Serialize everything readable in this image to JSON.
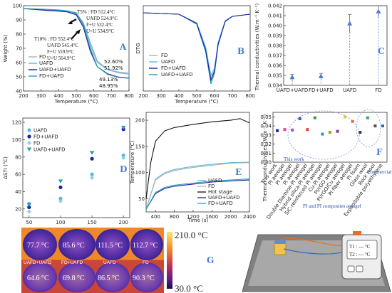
{
  "colors": {
    "fd": "#b0b0b0",
    "uafd": "#58b8e6",
    "ufd": "#1f1fa8",
    "fdua": "#28a0b0",
    "hot": "#111111",
    "axis": "#333333",
    "blue": "#4a7fd0"
  },
  "panel_labels": {
    "a": "A",
    "b": "B",
    "c": "C",
    "d": "D",
    "e": "E",
    "f": "F",
    "g": "G"
  },
  "panelA": {
    "ylabel": "Weight (%)",
    "xlabel": "Temperature (°C)",
    "xticks": [
      "200",
      "300",
      "400",
      "500",
      "600",
      "700",
      "800"
    ],
    "yticks": [
      "40",
      "50",
      "60",
      "70",
      "80",
      "90",
      "100"
    ],
    "t5": [
      "T5% : FD 512.4°C",
      "UAFD 524.9°C",
      "F+U 532.4°C",
      "U+U 534.9°C"
    ],
    "t10": [
      "T10% : FD 552.4°C",
      "UAFD 545.4°C",
      "F+U 559.9°C",
      "U+U 564.9°C"
    ],
    "pcts": [
      "52.60%",
      "51.92%",
      "49.13%",
      "48.95%"
    ],
    "legend": [
      "FD",
      "UAFD",
      "UAFD+UAFD",
      "FD+UAFD"
    ]
  },
  "panelB": {
    "ylabel": "DTG",
    "xlabel": "Temperature (°C)",
    "xticks": [
      "200",
      "300",
      "400",
      "500",
      "600",
      "700",
      "800"
    ],
    "legend": [
      "FD",
      "UAFD",
      "FD+UAFD",
      "UAFD+UAFD"
    ]
  },
  "panelC": {
    "ylabel": "Thermal conductivities (W.m⁻¹ K⁻¹)",
    "yticks": [
      "0.034",
      "0.035",
      "0.036",
      "0.037",
      "0.038",
      "0.039",
      "0.040",
      "0.041",
      "0.042"
    ],
    "categories": [
      "UAFD+UAFD",
      "FD+UAFD",
      "UAFD",
      "FD"
    ]
  },
  "panelD": {
    "ylabel": "ΔSTI (°C)",
    "xlabel": "",
    "xticks": [
      "50",
      "100",
      "150",
      "200"
    ],
    "yticks": [
      "20",
      "40",
      "60",
      "80",
      "100",
      "120"
    ],
    "legend": [
      "UAFD",
      "FD+UAFD",
      "FD",
      "UAFD+UAFD"
    ]
  },
  "panelE": {
    "ylabel": "Temperature (°C)",
    "xlabel": "Time (s)",
    "xticks": [
      "400",
      "800",
      "1200",
      "1600",
      "2000",
      "2400"
    ],
    "yticks": [
      "50",
      "100",
      "150",
      "200"
    ],
    "legend": [
      "UAFD",
      "FD",
      "Hot stage",
      "UAFD+UAFD",
      "FD+UAFD"
    ]
  },
  "panelF": {
    "ylabel": "Thermal conductivities (W.m⁻¹ K⁻¹)",
    "yticks": [
      "0.00",
      "0.01",
      "0.02",
      "0.03",
      "0.04",
      "0.05"
    ],
    "categories": [
      "This work",
      "PI aerogel",
      "PI aerogel",
      "PI aerogel",
      "Double Diamine-PI aerogel",
      "Hybrid silica-PI aerogel",
      "SiC-reinforced PI aerogel",
      "Cu-PI aerogel",
      "PI/rGO aerogel",
      "PI/rGO/Cu aerogel",
      "PI fiber aerogel",
      "PI foam",
      "Glass wool",
      "Rock wool",
      "Expandable polyethylene"
    ],
    "this_work": "This work",
    "group1": "PI and PI composites aerogel",
    "group2": "Commercial insulation materials"
  },
  "panelG": {
    "temps_top": [
      "77.7 °C",
      "85.6 °C",
      "111.5 °C",
      "112.7 °C"
    ],
    "temps_bottom": [
      "64.6 °C",
      "69.8 °C",
      "86.5 °C",
      "90.3 °C"
    ],
    "labels": [
      "UAFD+UAFD",
      "FD+UAFD",
      "UAFD",
      "FD"
    ],
    "cbar_max": "210.0 °C",
    "cbar_min": "30.0 °C",
    "t1": "T1 : --- °C",
    "t2": "T2 : --- °C"
  },
  "chart_data": [
    {
      "panel": "A",
      "type": "line",
      "xlabel": "Temperature (°C)",
      "ylabel": "Weight (%)",
      "xlim": [
        200,
        800
      ],
      "ylim": [
        40,
        100
      ],
      "series": [
        {
          "name": "FD",
          "x": [
            200,
            300,
            400,
            450,
            500,
            540,
            580,
            620,
            680,
            740,
            800
          ],
          "values": [
            98,
            97.2,
            96.6,
            96,
            94,
            86,
            72,
            60,
            55,
            53.4,
            52.6
          ]
        },
        {
          "name": "UAFD",
          "x": [
            200,
            300,
            400,
            450,
            500,
            540,
            580,
            620,
            680,
            740,
            800
          ],
          "values": [
            98,
            97.4,
            96.8,
            96.2,
            94.6,
            88,
            74,
            61,
            55,
            52.8,
            51.9
          ]
        },
        {
          "name": "UAFD+UAFD",
          "x": [
            200,
            300,
            400,
            450,
            500,
            540,
            580,
            620,
            680,
            740,
            800
          ],
          "values": [
            98,
            97,
            96.2,
            95.6,
            93.6,
            85,
            68,
            57,
            52,
            49.8,
            49.1
          ]
        },
        {
          "name": "FD+UAFD",
          "x": [
            200,
            300,
            400,
            450,
            500,
            540,
            580,
            620,
            680,
            740,
            800
          ],
          "values": [
            98,
            97.6,
            97,
            96.4,
            95,
            87,
            70,
            57,
            51.6,
            49.6,
            48.95
          ]
        }
      ]
    },
    {
      "panel": "B",
      "type": "line",
      "xlabel": "Temperature (°C)",
      "ylabel": "DTG",
      "xlim": [
        200,
        800
      ],
      "series": [
        {
          "name": "FD",
          "x": [
            200,
            400,
            500,
            550,
            580,
            600,
            620,
            660,
            700,
            800
          ],
          "values": [
            0,
            -0.02,
            -0.15,
            -0.5,
            -0.92,
            -0.8,
            -0.45,
            -0.12,
            -0.05,
            -0.02
          ]
        },
        {
          "name": "UAFD",
          "x": [
            200,
            400,
            500,
            550,
            580,
            600,
            620,
            660,
            700,
            800
          ],
          "values": [
            0,
            -0.02,
            -0.14,
            -0.48,
            -0.88,
            -0.78,
            -0.42,
            -0.11,
            -0.05,
            -0.02
          ]
        },
        {
          "name": "FD+UAFD",
          "x": [
            200,
            400,
            500,
            550,
            580,
            600,
            620,
            660,
            700,
            800
          ],
          "values": [
            0,
            -0.02,
            -0.16,
            -0.55,
            -1.0,
            -0.85,
            -0.46,
            -0.12,
            -0.05,
            -0.02
          ]
        },
        {
          "name": "UAFD+UAFD",
          "x": [
            200,
            400,
            500,
            550,
            580,
            600,
            620,
            660,
            700,
            800
          ],
          "values": [
            0,
            -0.02,
            -0.15,
            -0.52,
            -0.95,
            -0.82,
            -0.44,
            -0.12,
            -0.05,
            -0.02
          ]
        }
      ]
    },
    {
      "panel": "C",
      "type": "scatter",
      "ylabel": "Thermal conductivities (W.m⁻¹ K⁻¹)",
      "ylim": [
        0.034,
        0.042
      ],
      "categories": [
        "UAFD+UAFD",
        "FD+UAFD",
        "UAFD",
        "FD"
      ],
      "values": [
        0.0348,
        0.0349,
        0.0402,
        0.0414
      ],
      "errors": [
        0.0003,
        0.0003,
        0.0009,
        0.0006
      ]
    },
    {
      "panel": "D",
      "type": "scatter",
      "ylabel": "ΔSTI (°C)",
      "xlim": [
        40,
        210
      ],
      "ylim": [
        10,
        125
      ],
      "x": [
        50,
        100,
        150,
        200
      ],
      "series": [
        {
          "name": "UAFD",
          "values": [
            26,
            32,
            60,
            82
          ]
        },
        {
          "name": "FD+UAFD",
          "values": [
            22,
            45,
            78,
            112
          ]
        },
        {
          "name": "FD",
          "values": [
            17,
            29,
            56,
            79
          ]
        },
        {
          "name": "UAFD+UAFD",
          "values": [
            25,
            52,
            85,
            114
          ]
        }
      ]
    },
    {
      "panel": "E",
      "type": "line",
      "xlabel": "Time (s)",
      "ylabel": "Temperature (°C)",
      "xlim": [
        200,
        2400
      ],
      "ylim": [
        25,
        215
      ],
      "series": [
        {
          "name": "UAFD",
          "x": [
            200,
            400,
            600,
            800,
            1200,
            1600,
            2000,
            2400
          ],
          "values": [
            30,
            88,
            100,
            106,
            112,
            116,
            119,
            120
          ]
        },
        {
          "name": "FD",
          "x": [
            200,
            400,
            600,
            800,
            1200,
            1600,
            2000,
            2400
          ],
          "values": [
            30,
            86,
            98,
            104,
            110,
            114,
            118,
            119
          ]
        },
        {
          "name": "Hot stage",
          "x": [
            200,
            300,
            400,
            600,
            800,
            1200,
            1600,
            2000,
            2200,
            2400
          ],
          "values": [
            50,
            120,
            160,
            180,
            186,
            192,
            197,
            200,
            203,
            195
          ]
        },
        {
          "name": "UAFD+UAFD",
          "x": [
            200,
            400,
            600,
            800,
            1200,
            1600,
            2000,
            2400
          ],
          "values": [
            30,
            60,
            70,
            74,
            78,
            82,
            84,
            86
          ]
        },
        {
          "name": "FD+UAFD",
          "x": [
            200,
            400,
            600,
            800,
            1200,
            1600,
            2000,
            2400
          ],
          "values": [
            30,
            62,
            72,
            76,
            80,
            84,
            86,
            88
          ]
        }
      ]
    },
    {
      "panel": "F",
      "type": "scatter",
      "ylabel": "Thermal conductivities (W.m⁻¹ K⁻¹)",
      "ylim": [
        0,
        0.055
      ],
      "categories": [
        "This work",
        "PI aerogel",
        "PI aerogel",
        "PI aerogel",
        "Double Diamine-PI aerogel",
        "Hybrid silica-PI aerogel",
        "SiC-reinforced PI aerogel",
        "Cu-PI aerogel",
        "PI/rGO aerogel",
        "PI/rGO/Cu aerogel",
        "PI fiber aerogel",
        "PI foam",
        "Glass wool",
        "Rock wool",
        "Expandable polyethylene"
      ],
      "values": [
        0.0348,
        0.036,
        0.0355,
        0.048,
        0.036,
        0.049,
        0.031,
        0.033,
        0.034,
        0.05,
        0.045,
        0.033,
        0.049,
        0.04,
        0.04
      ]
    }
  ]
}
